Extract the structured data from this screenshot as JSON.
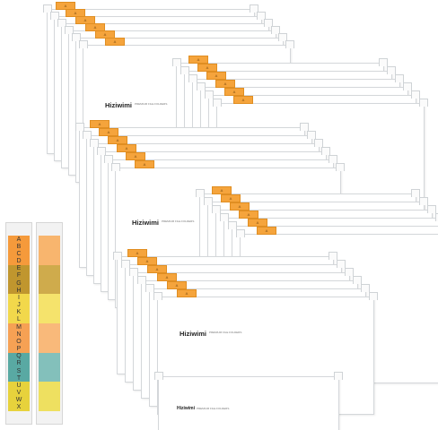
{
  "brand": {
    "name": "Hiziwimi",
    "tagline": "PREMIUM FILE FOLDERS"
  },
  "tab_label": "A",
  "colors": {
    "tab": "#f5a43c",
    "folder": "#ffffff",
    "strip_bands": [
      "#f59a3b",
      "#c0962e",
      "#f2d84b",
      "#f6a154",
      "#59a9a3",
      "#e7d23c"
    ],
    "strip_bands_clear": [
      "#f8b56e",
      "#cfab4c",
      "#f5e36c",
      "#f9b97a",
      "#83c0bb",
      "#eee060"
    ]
  },
  "index_letters": [
    "A",
    "B",
    "C",
    "D",
    "E",
    "F",
    "G",
    "H",
    "I",
    "J",
    "K",
    "L",
    "M",
    "N",
    "O",
    "P",
    "Q",
    "R",
    "S",
    "T",
    "U",
    "V",
    "W",
    "X"
  ]
}
